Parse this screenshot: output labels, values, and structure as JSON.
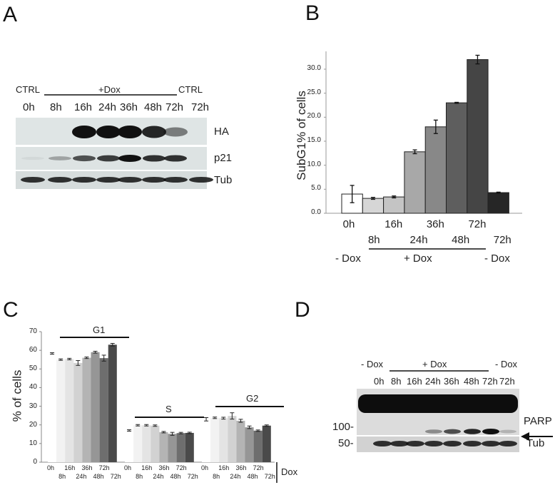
{
  "panels": {
    "a": "A",
    "b": "B",
    "c": "C",
    "d": "D"
  },
  "panel_a": {
    "ctrl_left": "CTRL",
    "dox": "+Dox",
    "ctrl_right": "CTRL",
    "lanes": [
      "0h",
      "8h",
      "16h",
      "24h",
      "36h",
      "48h",
      "72h",
      "72h"
    ],
    "rows": [
      "HA",
      "p21",
      "Tub"
    ]
  },
  "panel_d": {
    "minus_dox_left": "- Dox",
    "plus_dox": "+ Dox",
    "minus_dox_right": "- Dox",
    "lanes": [
      "0h",
      "8h",
      "16h",
      "24h",
      "36h",
      "48h",
      "72h",
      "72h"
    ],
    "markers": [
      "100-",
      "50-"
    ],
    "rows": [
      "PARP",
      "Tub"
    ],
    "arrow": "arrow-icon"
  },
  "chart_data": [
    {
      "type": "bar",
      "panel": "B",
      "ylabel": "SubG1% of cells",
      "ylim": [
        0,
        35
      ],
      "yticks": [
        "0.0",
        "5.0",
        "10.0",
        "15.0",
        "20.0",
        "25.0",
        "30.0"
      ],
      "categories": [
        "0h",
        "8h",
        "16h",
        "24h",
        "36h",
        "48h",
        "72h",
        "72h"
      ],
      "values": [
        4.0,
        3.1,
        3.4,
        12.8,
        18.0,
        23.0,
        32.0,
        4.3
      ],
      "errors": [
        1.8,
        0.2,
        0.2,
        0.4,
        1.4,
        0.1,
        0.9,
        0.1
      ],
      "colors": [
        "#ffffff",
        "#d6d6d6",
        "#c4c4c4",
        "#a8a8a8",
        "#888888",
        "#5e5e5e",
        "#454545",
        "#262626"
      ],
      "groups": [
        "- Dox",
        "+ Dox",
        "- Dox"
      ]
    },
    {
      "type": "bar",
      "panel": "C",
      "ylabel": "% of cells",
      "ylim": [
        0,
        70
      ],
      "yticks": [
        "0",
        "10",
        "20",
        "30",
        "40",
        "50",
        "60",
        "70"
      ],
      "categories": [
        "0h",
        "8h",
        "16h",
        "24h",
        "36h",
        "48h",
        "72h",
        "72h"
      ],
      "xaxis_label": "Dox",
      "series": [
        {
          "name": "G1",
          "values": [
            58.3,
            55.0,
            55.3,
            53.2,
            56.0,
            59.0,
            55.8,
            63.0
          ],
          "errors": [
            0.4,
            0.2,
            0.4,
            1.3,
            0.4,
            0.5,
            1.6,
            0.7
          ]
        },
        {
          "name": "S",
          "values": [
            17.0,
            19.8,
            19.8,
            19.6,
            16.1,
            15.2,
            15.6,
            15.7
          ],
          "errors": [
            0.1,
            0.1,
            0.1,
            0.3,
            0.1,
            0.8,
            0.4,
            0.3
          ]
        },
        {
          "name": "G2",
          "values": [
            23.0,
            23.8,
            23.6,
            24.8,
            22.2,
            18.7,
            16.9,
            19.6
          ],
          "errors": [
            0.9,
            0.4,
            0.5,
            1.7,
            0.8,
            0.7,
            0.1,
            0.2
          ]
        }
      ],
      "colors": [
        "#ffffff",
        "#f2f2f2",
        "#e4e4e4",
        "#d2d2d2",
        "#b4b4b4",
        "#969696",
        "#6e6e6e",
        "#4a4a4a"
      ]
    }
  ]
}
